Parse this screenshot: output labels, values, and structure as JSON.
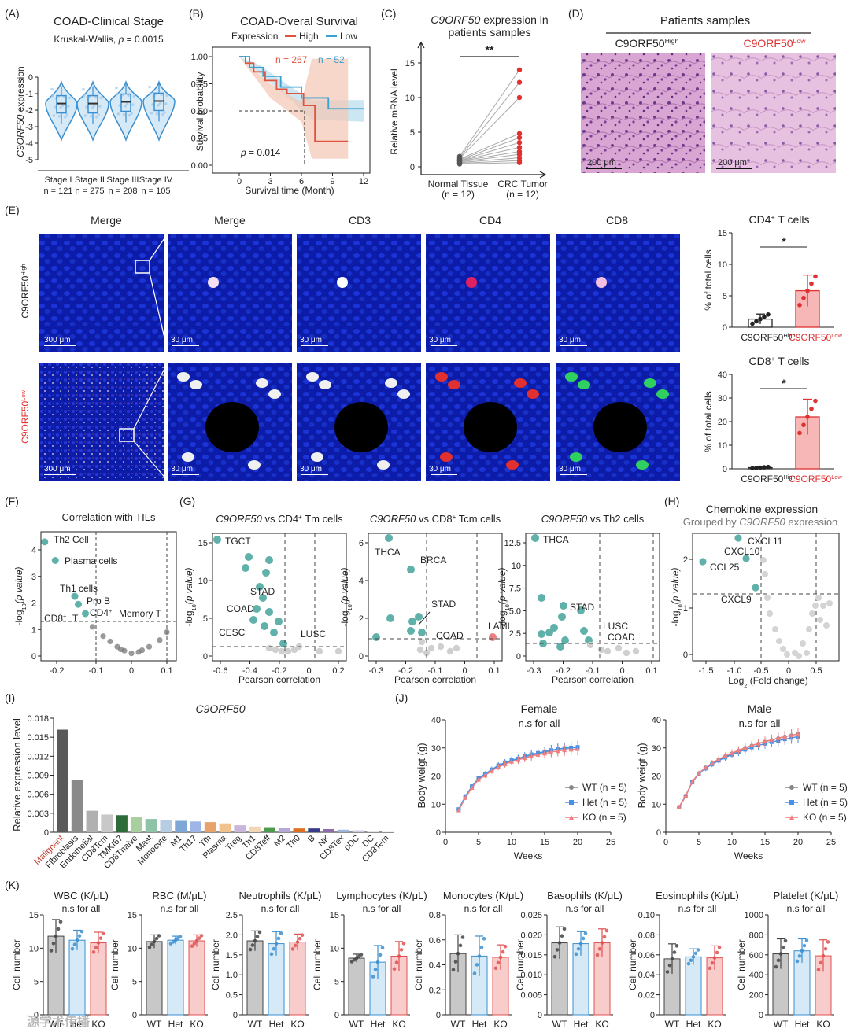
{
  "panel_labels": [
    "(A)",
    "(B)",
    "(C)",
    "(D)",
    "(E)",
    "(F)",
    "(G)",
    "(H)",
    "(I)",
    "(J)",
    "(K)"
  ],
  "gene": "C9ORF50",
  "colors": {
    "high": "#e0533c",
    "low": "#3aa0d0",
    "blue": "#3b8fd0",
    "teal": "#5fb1a9",
    "gray": "#bfbfbf",
    "red": "#e03030",
    "he_pink": "#c98bc3",
    "fluor_bg": "#0a1a9a"
  },
  "panel_a": {
    "title": "COAD-Clinical Stage",
    "subtitle_prefix": "Kruskal-Wallis, ",
    "subtitle_p": "p",
    "subtitle_value": " = 0.0015",
    "ylabel_gene": "C9ORF50",
    "ylabel_suffix": " expression",
    "yticks": [
      "0",
      "-1",
      "-2",
      "-3",
      "-4",
      "-5"
    ],
    "groups": [
      {
        "label": "Stage I",
        "n": "n = 121",
        "median": -1.6
      },
      {
        "label": "Stage II",
        "n": "n = 275",
        "median": -1.6
      },
      {
        "label": "Stage III",
        "n": "n = 208",
        "median": -1.5
      },
      {
        "label": "Stage IV",
        "n": "n = 105",
        "median": -1.45
      }
    ]
  },
  "panel_b": {
    "title": "COAD-Overal Survival",
    "legend_title": "Expression",
    "legend": [
      "High",
      "Low"
    ],
    "n_high": "n = 267",
    "n_low": "n = 52",
    "ylabel": "Survival probability",
    "xlabel": "Survival time (Month)",
    "xticks": [
      "0",
      "3",
      "6",
      "9",
      "12"
    ],
    "yticks": [
      "1.00",
      "0.75",
      "0.50",
      "0.25",
      "0.00"
    ],
    "p_label": "p",
    "p_value": " = 0.014"
  },
  "panel_c": {
    "title_gene": "C9ORF50",
    "title_rest": " expression in",
    "title_line2": "patients samples",
    "ylabel": "Relative mRNA level",
    "yticks": [
      "15",
      "10",
      "5",
      "0"
    ],
    "sig": "**",
    "x_labels": [
      "Normal Tissue",
      "CRC Tumor"
    ],
    "x_n": [
      "(n = 12)",
      "(n = 12)"
    ]
  },
  "panel_d": {
    "title": "Patients samples",
    "col1": "C9ORF50",
    "col1_sup": "High",
    "col2": "C9ORF50",
    "col2_sup": "Low",
    "scale": "200 μm"
  },
  "panel_e": {
    "columns": [
      "Merge",
      "Merge",
      "CD3",
      "CD4",
      "CD8"
    ],
    "row1": "C9ORF50",
    "row1_sup": "High",
    "row2": "C9ORF50",
    "row2_sup": "Low",
    "scale_big": "300 μm",
    "scale_small": "30 μm",
    "chart1_title": "CD4",
    "chart1_title_sup": "+",
    "chart1_title_rest": " T cells",
    "chart2_title": "CD8",
    "chart2_title_sup": "+",
    "chart2_title_rest": " T cells",
    "ylabel": "% of total cells",
    "sig": "*",
    "xlabels": [
      "C9ORF50",
      "C9ORF50"
    ],
    "xlabel_sups": [
      "High",
      "Low"
    ],
    "chart1_yticks": [
      "15",
      "10",
      "5",
      "0"
    ],
    "chart2_yticks": [
      "40",
      "30",
      "20",
      "10",
      "0"
    ]
  },
  "panel_f": {
    "title": "Correlation with TILs",
    "ylabel_pre": "-log",
    "ylabel_sub": "10",
    "ylabel_post": "(p value)",
    "xticks": [
      "-0.2",
      "-0.1",
      "0",
      "0.1"
    ],
    "yticks": [
      "4",
      "3",
      "2",
      "1",
      "0"
    ],
    "labels": [
      "Th2 Cell",
      "Plasma cells",
      "Th1 cells",
      "Pro B",
      "CD4",
      "Memory T",
      "CD8",
      "T"
    ]
  },
  "panel_g": {
    "titles": [
      {
        "gene": "C9ORF50",
        "rest": " vs CD4",
        "sup": "+",
        "tail": " Tm cells"
      },
      {
        "gene": "C9ORF50",
        "rest": " vs CD8",
        "sup": "+",
        "tail": " Tcm cells"
      },
      {
        "gene": "C9ORF50",
        "rest": " vs Th2 cells",
        "sup": "",
        "tail": ""
      }
    ],
    "xlabel": "Pearson correlation",
    "plot1": {
      "xticks": [
        "-0.6",
        "-0.4",
        "-0.2",
        "0",
        "0.2"
      ],
      "yticks": [
        "15",
        "10",
        "5",
        "0"
      ],
      "labels": [
        "TGCT",
        "STAD",
        "COAD",
        "CESC",
        "LUSC"
      ]
    },
    "plot2": {
      "xticks": [
        "-0.3",
        "-0.2",
        "-0.1",
        "0",
        "0.1"
      ],
      "yticks": [
        "6",
        "4",
        "2",
        "0"
      ],
      "labels": [
        "THCA",
        "BRCA",
        "STAD",
        "COAD",
        "LAML"
      ]
    },
    "plot3": {
      "xticks": [
        "-0.3",
        "-0.2",
        "-0.1",
        "0",
        "0.1"
      ],
      "yticks": [
        "12.5",
        "10",
        "7.5",
        "5.0",
        "2.5",
        "0"
      ],
      "labels": [
        "THCA",
        "STAD",
        "LUSC",
        "COAD"
      ]
    }
  },
  "panel_h": {
    "title": "Chemokine expression",
    "subtitle_pre": "Grouped by ",
    "subtitle_gene": "C9ORF50",
    "subtitle_post": " expression",
    "xlabel_pre": "Log",
    "xlabel_sub": "2",
    "xlabel_post": " (Fold change)",
    "xticks": [
      "-1.5",
      "-1.0",
      "-0.5",
      "0",
      "0.5"
    ],
    "yticks": [
      "2",
      "1",
      "0"
    ],
    "labels": [
      "CXCL11",
      "CXCL10",
      "CCL25",
      "CXCL9"
    ]
  },
  "panel_i": {
    "title": "C9ORF50",
    "ylabel": "Relative expression level",
    "yticks": [
      "0.018",
      "0.015",
      "0.012",
      "0.009",
      "0.006",
      "0.003",
      "0"
    ]
  },
  "panel_j": {
    "female_title": "Female",
    "male_title": "Male",
    "subtitle": "n.s for all",
    "ylabel": "Body weigt (g)",
    "xlabel": "Weeks",
    "xticks": [
      "0",
      "5",
      "10",
      "15",
      "20",
      "25"
    ],
    "yticks": [
      "40",
      "30",
      "20",
      "10",
      "0"
    ],
    "legend": [
      "WT (n = 5)",
      "Het (n = 5)",
      "KO (n =  5)"
    ],
    "legend_male": [
      "WT (n = 5)",
      "Het (n = 5)",
      "KO (n = 5)"
    ]
  },
  "panel_k": {
    "subtitle": "n.s for all",
    "ylabel": "Cell number",
    "groups": [
      "WT",
      "Het",
      "KO"
    ],
    "watermark": "源学术传播"
  },
  "chart_data": [
    {
      "type": "bar",
      "panel": "I",
      "title": "C9ORF50",
      "ylabel": "Relative expression level",
      "ylim": [
        0,
        0.018
      ],
      "categories": [
        "Malignant",
        "Fibroblasts",
        "Endothelial",
        "CD8Tcm",
        "TMKI67",
        "CD8Tnaive",
        "Mast",
        "Monocyte",
        "M1",
        "Th17",
        "Tfh",
        "Plasma",
        "Treg",
        "Th1",
        "CD8Teff",
        "M2",
        "Th0",
        "B",
        "NK",
        "CD8Tex",
        "pDC",
        "DC",
        "CD8Tem"
      ],
      "values": [
        0.0162,
        0.0083,
        0.0034,
        0.0028,
        0.0027,
        0.0024,
        0.0021,
        0.0019,
        0.0018,
        0.0017,
        0.0016,
        0.0014,
        0.0011,
        0.0009,
        0.0008,
        0.0007,
        0.0006,
        0.0006,
        0.0005,
        0.0004,
        0.0003,
        0.0002,
        0.0001
      ],
      "bar_colors": [
        "#5a5a5a",
        "#8a8a8a",
        "#b0b0b0",
        "#c8c8c8",
        "#2e6b3a",
        "#a9cfa0",
        "#8fc3a8",
        "#b7cde3",
        "#7fa7d6",
        "#9fb5e6",
        "#e8a36b",
        "#f1c28e",
        "#c9b6d8",
        "#f3d6b8",
        "#4e9a4e",
        "#b5a9d6",
        "#e07020",
        "#3a3a8a",
        "#8d6aa8",
        "#9db4d8",
        "#cfc6e0",
        "#e4e4e4",
        "#f0f0f0"
      ]
    },
    {
      "type": "line",
      "panel": "J-Female",
      "xlabel": "Weeks",
      "ylabel": "Body weigt (g)",
      "xlim": [
        0,
        25
      ],
      "ylim": [
        0,
        40
      ],
      "x": [
        2,
        3,
        4,
        5,
        6,
        7,
        8,
        9,
        10,
        11,
        12,
        13,
        14,
        15,
        16,
        17,
        18,
        19,
        20
      ],
      "series": [
        {
          "name": "WT (n = 5)",
          "values": [
            8,
            12.5,
            16,
            19,
            20.5,
            22,
            23.5,
            24.5,
            25.5,
            26,
            26.8,
            27.5,
            28,
            28.5,
            29,
            29.5,
            29.8,
            30,
            30.2
          ]
        },
        {
          "name": "Het (n = 5)",
          "values": [
            8.2,
            12.8,
            16.3,
            19.2,
            20.8,
            22.3,
            23.8,
            24.8,
            25.6,
            26.2,
            27,
            27.7,
            28.2,
            28.7,
            29.2,
            29.6,
            29.9,
            30.1,
            30.3
          ]
        },
        {
          "name": "KO (n =  5)",
          "values": [
            7.8,
            12.2,
            15.8,
            18.7,
            20.2,
            21.8,
            23.2,
            24.2,
            25.1,
            25.7,
            26.4,
            27,
            27.6,
            28,
            28.5,
            28.9,
            29.2,
            29.4,
            29.6
          ]
        }
      ]
    },
    {
      "type": "line",
      "panel": "J-Male",
      "xlabel": "Weeks",
      "ylabel": "Body weigt (g)",
      "xlim": [
        0,
        25
      ],
      "ylim": [
        0,
        40
      ],
      "x": [
        2,
        3,
        4,
        5,
        6,
        7,
        8,
        9,
        10,
        11,
        12,
        13,
        14,
        15,
        16,
        17,
        18,
        19,
        20
      ],
      "series": [
        {
          "name": "WT (n = 5)",
          "values": [
            9,
            13,
            18,
            21,
            23,
            24.5,
            25.8,
            27,
            28,
            29,
            30,
            30.8,
            31.5,
            32.2,
            32.8,
            33.4,
            34,
            34.5,
            35
          ]
        },
        {
          "name": "Het (n = 5)",
          "values": [
            8.8,
            12.8,
            17.8,
            20.8,
            22.7,
            24.2,
            25.5,
            26.6,
            27.6,
            28.5,
            29.4,
            30.2,
            30.9,
            31.5,
            32.1,
            32.6,
            33.1,
            33.6,
            34
          ]
        },
        {
          "name": "KO (n = 5)",
          "values": [
            9,
            13,
            18,
            21,
            23,
            24.6,
            26,
            27.2,
            28.2,
            29.2,
            30.1,
            30.9,
            31.6,
            32.3,
            32.9,
            33.5,
            34,
            34.5,
            35
          ]
        }
      ]
    },
    {
      "type": "bar",
      "panel": "K",
      "categories": [
        "WT",
        "Het",
        "KO"
      ],
      "charts": [
        {
          "title": "WBC (K/μL)",
          "ylim": [
            0,
            15
          ],
          "yticks": [
            "15",
            "10",
            "5",
            "0"
          ],
          "values": [
            11.8,
            11.2,
            10.8
          ],
          "sd": [
            2.5,
            1.5,
            1.6
          ]
        },
        {
          "title": "RBC (M/μL)",
          "ylim": [
            0,
            15
          ],
          "yticks": [
            "15",
            "10",
            "5",
            "0"
          ],
          "values": [
            11,
            11.2,
            11.1
          ],
          "sd": [
            1.0,
            0.6,
            0.9
          ]
        },
        {
          "title": "Neutrophils (K/μL)",
          "ylim": [
            0,
            2.5
          ],
          "yticks": [
            "2.5",
            "2.0",
            "1.5",
            "1.0",
            "0.5",
            "0"
          ],
          "values": [
            1.85,
            1.78,
            1.82
          ],
          "sd": [
            0.25,
            0.3,
            0.2
          ]
        },
        {
          "title": "Lymphocytes (K/μL)",
          "ylim": [
            0,
            15
          ],
          "yticks": [
            "15",
            "10",
            "5",
            "0"
          ],
          "values": [
            8.5,
            7.9,
            8.8
          ],
          "sd": [
            0.6,
            2.5,
            2.2
          ]
        },
        {
          "title": "Monocytes (K/μL)",
          "ylim": [
            0,
            0.8
          ],
          "yticks": [
            "0.8",
            "0.6",
            "0.4",
            "0.2",
            "0"
          ],
          "values": [
            0.49,
            0.47,
            0.46
          ],
          "sd": [
            0.15,
            0.16,
            0.1
          ]
        },
        {
          "title": "Basophils (K/μL)",
          "ylim": [
            0,
            0.025
          ],
          "yticks": [
            "0.025",
            "0.020",
            "0.015",
            "0.010",
            "0.005",
            "0"
          ],
          "values": [
            0.018,
            0.0178,
            0.018
          ],
          "sd": [
            0.004,
            0.003,
            0.0035
          ]
        },
        {
          "title": "Eosinophils (K/μL)",
          "ylim": [
            0,
            0.1
          ],
          "yticks": [
            "0.10",
            "0.08",
            "0.06",
            "0.04",
            "0.02",
            "0"
          ],
          "values": [
            0.056,
            0.058,
            0.057
          ],
          "sd": [
            0.015,
            0.008,
            0.012
          ]
        },
        {
          "title": "Platelet (K/μL)",
          "ylim": [
            0,
            1000
          ],
          "yticks": [
            "1000",
            "800",
            "600",
            "400",
            "200",
            "0"
          ],
          "values": [
            610,
            640,
            590
          ],
          "sd": [
            150,
            120,
            160
          ]
        }
      ]
    },
    {
      "type": "bar",
      "panel": "E-CD4",
      "categories": [
        "C9ORF50 High",
        "C9ORF50 Low"
      ],
      "values": [
        1.3,
        5.8
      ],
      "sd": [
        0.8,
        2.5
      ],
      "ylim": [
        0,
        15
      ]
    },
    {
      "type": "bar",
      "panel": "E-CD8",
      "categories": [
        "C9ORF50 High",
        "C9ORF50 Low"
      ],
      "values": [
        0.5,
        22
      ],
      "sd": [
        0.3,
        7.5
      ],
      "ylim": [
        0,
        40
      ]
    }
  ]
}
